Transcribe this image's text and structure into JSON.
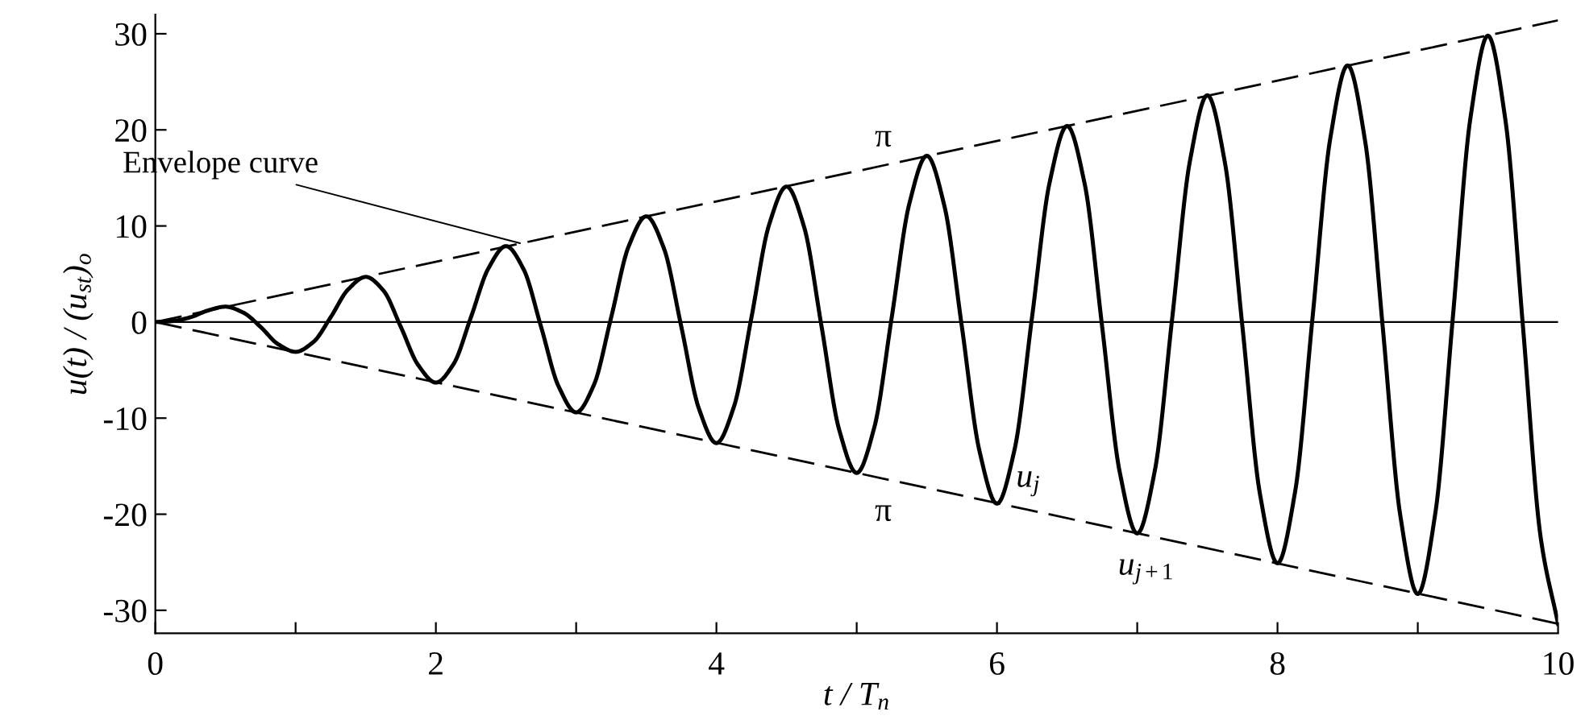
{
  "chart_data": {
    "type": "line",
    "xlabel": "t / T$_{n}$",
    "ylabel": "u(t) / (u$_{st}$)$_{o}$",
    "xlim": [
      0,
      10
    ],
    "ylim": [
      -32.4,
      32
    ],
    "xticks": [
      0,
      {
        "value": 1,
        "label": null
      },
      2,
      {
        "value": 3,
        "label": null
      },
      4,
      {
        "value": 5,
        "label": null
      },
      6,
      {
        "value": 7,
        "label": null
      },
      8,
      {
        "value": 9,
        "label": null
      },
      10
    ],
    "yticks": [
      -30,
      -20,
      -10,
      0,
      10,
      20,
      30
    ],
    "grid": false,
    "legend": false,
    "series": [
      {
        "color": "#000000",
        "line_style": "solid",
        "x": [
          0,
          0.125,
          0.25,
          0.375,
          0.5,
          0.625,
          0.75,
          0.875,
          1,
          1.125,
          1.25,
          1.375,
          1.5,
          1.625,
          1.75,
          1.875,
          2,
          2.125,
          2.25,
          2.375,
          2.5,
          2.625,
          2.75,
          2.875,
          3,
          3.125,
          3.25,
          3.375,
          3.5,
          3.625,
          3.75,
          3.875,
          4,
          4.125,
          4.25,
          4.375,
          4.5,
          4.625,
          4.75,
          4.875,
          5,
          5.125,
          5.25,
          5.375,
          5.5,
          5.625,
          5.75,
          5.875,
          6,
          6.125,
          6.25,
          6.375,
          6.5,
          6.625,
          6.75,
          6.875,
          7,
          7.125,
          7.25,
          7.375,
          7.5,
          7.625,
          7.75,
          7.875,
          8,
          8.125,
          8.25,
          8.375,
          8.5,
          8.625,
          8.75,
          8.875,
          9,
          9.125,
          9.25,
          9.375,
          9.5,
          9.625,
          9.75,
          9.875,
          10
        ],
        "values": [
          0,
          0.1,
          0.5,
          1.2,
          1.6,
          1.0,
          -0.5,
          -2.3,
          -3.1,
          -2.1,
          0.5,
          3.4,
          4.7,
          3.3,
          -0.5,
          -4.5,
          -6.3,
          -4.4,
          0.5,
          5.6,
          7.9,
          5.5,
          -0.5,
          -6.7,
          -9.4,
          -6.6,
          0.5,
          7.9,
          11.0,
          7.7,
          -0.5,
          -9.0,
          -12.6,
          -8.8,
          0.5,
          10.1,
          14.1,
          9.9,
          -0.5,
          -11.2,
          -15.7,
          -11.0,
          0.5,
          12.3,
          17.3,
          12.1,
          -0.5,
          -13.4,
          -18.9,
          -13.3,
          0.5,
          14.5,
          20.4,
          14.4,
          -0.5,
          -15.6,
          -22.0,
          -15.5,
          0.5,
          16.7,
          23.6,
          16.6,
          -0.5,
          -17.9,
          -25.1,
          -17.7,
          0.5,
          19.0,
          26.7,
          18.8,
          -0.5,
          -20.1,
          -28.3,
          -19.9,
          0.5,
          21.2,
          29.8,
          21.0,
          -0.5,
          -22.3,
          -31.4
        ]
      },
      {
        "color": "#000000",
        "line_style": "dashed",
        "x": [
          0,
          10
        ],
        "values": [
          0,
          31.4
        ]
      },
      {
        "color": "#000000",
        "line_style": "dashed",
        "x": [
          0,
          10
        ],
        "values": [
          0,
          -31.4
        ]
      }
    ],
    "ref_lines": [
      {
        "axis": "y",
        "value": 0,
        "color": "#000000",
        "line_style": "solid"
      }
    ],
    "annotations": [
      {
        "text": "Envelope curve",
        "x": 2.6,
        "y": 8.2
      },
      "π",
      "π",
      {
        "text": "u$_{j}$",
        "x": 6.0,
        "y": -18.9
      },
      {
        "text": "u$_{j+1}$",
        "x": 7.0,
        "y": -22.0
      }
    ]
  }
}
